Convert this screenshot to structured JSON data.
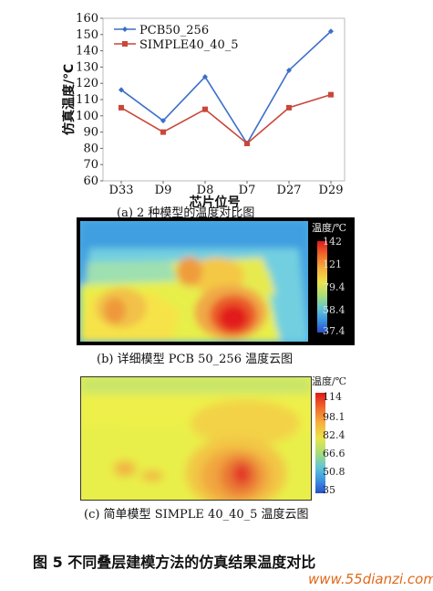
{
  "chart_data": {
    "type": "line",
    "categories": [
      "D33",
      "D9",
      "D8",
      "D7",
      "D27",
      "D29"
    ],
    "series": [
      {
        "name": "PCB50_256",
        "color": "#3b6fc9",
        "values": [
          116,
          97,
          124,
          83,
          128,
          152
        ]
      },
      {
        "name": "SIMPLE40_40_5",
        "color": "#c9473a",
        "values": [
          105,
          90,
          104,
          83,
          105,
          113
        ]
      }
    ],
    "ylabel": "仿真温度/℃",
    "xlabel": "芯片位号",
    "ylim": [
      60,
      160
    ],
    "yticks": [
      60,
      70,
      80,
      90,
      100,
      110,
      120,
      130,
      140,
      150,
      160
    ],
    "grid": false,
    "legend_position": "top-left"
  },
  "captions": {
    "a": "(a)  2 种模型的温度对比图",
    "b": "(b)  详细模型 PCB 50_256 温度云图",
    "c": "(c)  简单模型 SIMPLE 40_40_5 温度云图"
  },
  "map_b": {
    "scale_title": "温度/℃",
    "ticks": [
      "142",
      "121",
      "79.4",
      "58.4",
      "37.4"
    ]
  },
  "map_c": {
    "scale_title": "温度/℃",
    "ticks": [
      "114",
      "98.1",
      "82.4",
      "66.6",
      "50.8",
      "35"
    ]
  },
  "figure_title": "图 5    不同叠层建模方法的仿真结果温度对比",
  "watermark": "www.55dianzi.com"
}
